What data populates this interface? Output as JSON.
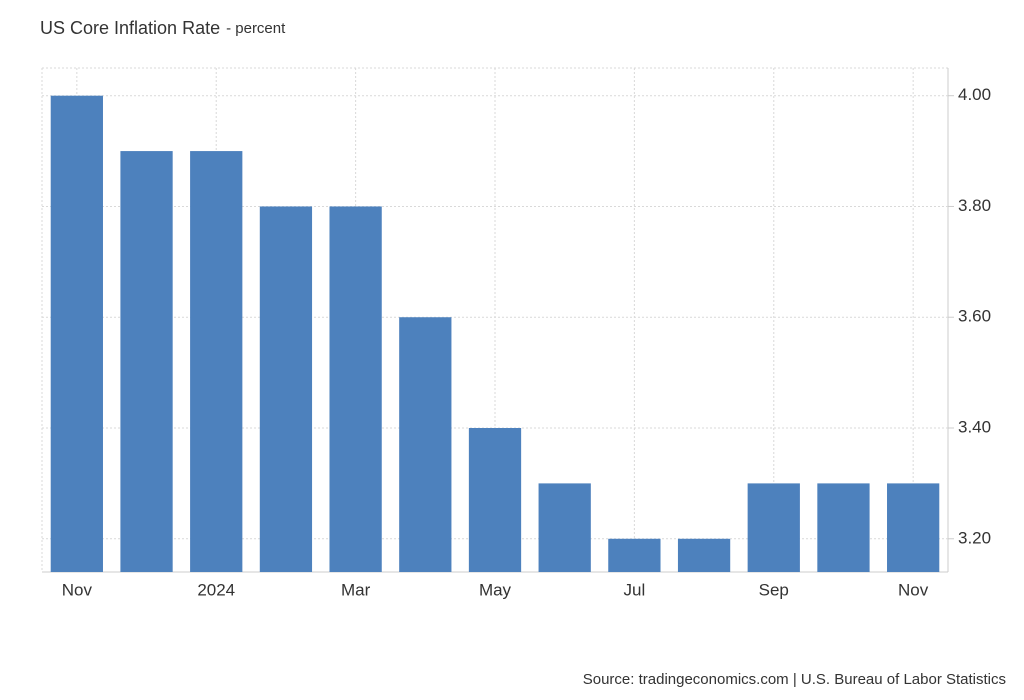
{
  "chart_data": {
    "type": "bar",
    "title": "US Core Inflation Rate",
    "subtitle": "- percent",
    "categories": [
      "Nov",
      null,
      "2024",
      null,
      "Mar",
      null,
      "May",
      null,
      "Jul",
      null,
      "Sep",
      null,
      "Nov"
    ],
    "values": [
      4.0,
      3.9,
      3.9,
      3.8,
      3.8,
      3.6,
      3.4,
      3.3,
      3.2,
      3.2,
      3.3,
      3.3,
      3.3
    ],
    "color": "#4d81bd",
    "ylim": [
      3.14,
      4.05
    ],
    "yticks": [
      {
        "value": 3.2,
        "label": "3.20"
      },
      {
        "value": 3.4,
        "label": "3.40"
      },
      {
        "value": 3.6,
        "label": "3.60"
      },
      {
        "value": 3.8,
        "label": "3.80"
      },
      {
        "value": 4.0,
        "label": "4.00"
      }
    ],
    "grid": true,
    "source": "Source: tradingeconomics.com | U.S. Bureau of Labor Statistics"
  }
}
